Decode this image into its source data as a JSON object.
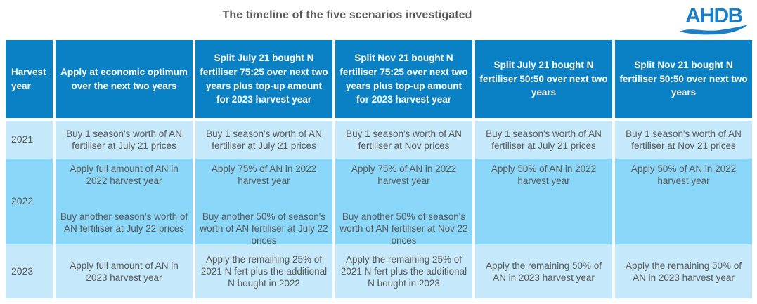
{
  "page": {
    "title": "The timeline of the five scenarios investigated"
  },
  "logo": {
    "text": "AHDB"
  },
  "colors": {
    "header_bg": "#0a81c4",
    "row_light": "#c5e9fa",
    "row_medium": "#8bd7f9",
    "header_text": "#ffffff",
    "body_text": "#595959",
    "logo_blue": "#1d7ec6"
  },
  "table": {
    "columns": [
      {
        "header": "Harvest year"
      },
      {
        "header": "Apply at economic optimum over the next two years"
      },
      {
        "header": "Split July 21 bought N fertiliser 75:25 over next two years plus top-up amount for 2023 harvest year"
      },
      {
        "header": "Split Nov 21 bought N fertiliser 75:25 over next two years plus top-up amount for 2023 harvest year"
      },
      {
        "header": "Split July 21 bought N fertiliser 50:50 over next two years"
      },
      {
        "header": "Split Nov 21 bought N fertiliser 50:50 over next two years"
      }
    ],
    "rows": [
      {
        "year": "2021",
        "shade": "light",
        "align": "middle",
        "cells": [
          [
            "Buy 1 season's worth of AN fertiliser at July 21 prices"
          ],
          [
            "Buy 1 season's worth of AN fertiliser at July 21 prices"
          ],
          [
            "Buy 1 season's worth of AN fertiliser at Nov prices"
          ],
          [
            "Buy 1 season's worth of AN fertiliser at July 21 prices"
          ],
          [
            "Buy 1 season's worth of AN fertiliser at Nov 21 prices"
          ]
        ]
      },
      {
        "year": "2022",
        "shade": "medium",
        "align": "top",
        "cells": [
          [
            "Apply full amount of AN in 2022 harvest year",
            "Buy another season's worth of AN fertiliser at July 22 prices"
          ],
          [
            "Apply 75% of AN in 2022 harvest year",
            "Buy another 50% of season's worth of AN fertiliser at July 22 prices"
          ],
          [
            "Apply 75% of AN in 2022 harvest year",
            "Buy another 50% of season's worth of AN fertiliser at Nov 22 prices"
          ],
          [
            "Apply 50% of AN in 2022 harvest year"
          ],
          [
            "Apply 50% of AN in 2022 harvest year"
          ]
        ]
      },
      {
        "year": "2023",
        "shade": "light",
        "align": "middle",
        "cells": [
          [
            "Apply full amount of AN in 2023 harvest year"
          ],
          [
            "Apply the remaining 25% of 2021 N fert plus the additional N bought in 2022"
          ],
          [
            "Apply the remaining 25% of 2021 N fert plus the additional N bought in 2023"
          ],
          [
            "Apply the remaining 50% of AN in 2023 harvest year"
          ],
          [
            "Apply the remaining 50% of AN in 2023 harvest year"
          ]
        ]
      }
    ]
  }
}
